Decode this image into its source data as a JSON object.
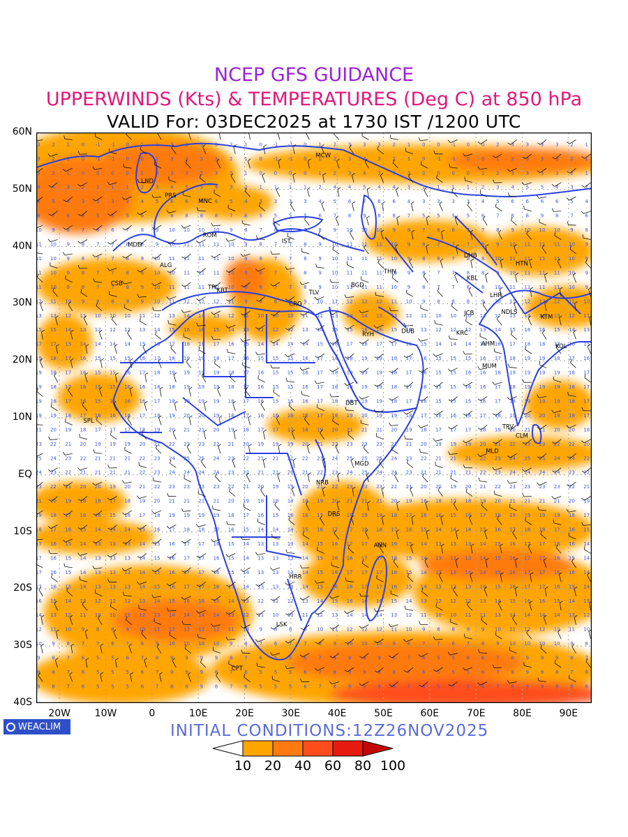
{
  "header": {
    "line1": "NCEP GFS GUIDANCE",
    "line2": "UPPERWINDS (Kts) & TEMPERATURES (Deg C) at 850 hPa",
    "line3": "VALID For: 03DEC2025 at 1730 IST /1200 UTC"
  },
  "map": {
    "lat_range": [
      -40,
      60
    ],
    "lon_range": [
      -25,
      95
    ],
    "lat_labels": [
      "60N",
      "50N",
      "40N",
      "30N",
      "20N",
      "10N",
      "EQ",
      "10S",
      "20S",
      "30S",
      "40S"
    ],
    "lon_labels": [
      "20W",
      "10W",
      "0",
      "10E",
      "20E",
      "30E",
      "40E",
      "50E",
      "60E",
      "70E",
      "80E",
      "90E"
    ],
    "stations": [
      {
        "code": "MCW",
        "lat": 56,
        "lon": 37
      },
      {
        "code": "LND",
        "lat": 51.5,
        "lon": -1
      },
      {
        "code": "PRS",
        "lat": 49,
        "lon": 4
      },
      {
        "code": "MNC",
        "lat": 48,
        "lon": 11.5
      },
      {
        "code": "ROM",
        "lat": 42,
        "lon": 12.5
      },
      {
        "code": "MDD",
        "lat": 40.4,
        "lon": -3.7
      },
      {
        "code": "IST",
        "lat": 41,
        "lon": 29
      },
      {
        "code": "ALG",
        "lat": 36.8,
        "lon": 3
      },
      {
        "code": "CSB",
        "lat": 33.6,
        "lon": -7.6
      },
      {
        "code": "TPL",
        "lat": 32.9,
        "lon": 13.2
      },
      {
        "code": "KRT",
        "lat": 32.4,
        "lon": 15.2
      },
      {
        "code": "CRO",
        "lat": 30,
        "lon": 31
      },
      {
        "code": "TLV",
        "lat": 32,
        "lon": 35
      },
      {
        "code": "BGD",
        "lat": 33.3,
        "lon": 44.4
      },
      {
        "code": "THN",
        "lat": 35.7,
        "lon": 51.4
      },
      {
        "code": "DHB",
        "lat": 38.5,
        "lon": 68.8
      },
      {
        "code": "KBL",
        "lat": 34.5,
        "lon": 69.2
      },
      {
        "code": "HTN",
        "lat": 37.1,
        "lon": 79.9
      },
      {
        "code": "LHR",
        "lat": 31.5,
        "lon": 74.3
      },
      {
        "code": "NDLS",
        "lat": 28.6,
        "lon": 77.2
      },
      {
        "code": "JCB",
        "lat": 28.4,
        "lon": 68.5
      },
      {
        "code": "RYH",
        "lat": 24.7,
        "lon": 46.7
      },
      {
        "code": "DUB",
        "lat": 25.2,
        "lon": 55.3
      },
      {
        "code": "KRC",
        "lat": 24.9,
        "lon": 67
      },
      {
        "code": "AHM",
        "lat": 23,
        "lon": 72.6
      },
      {
        "code": "KTM",
        "lat": 27.7,
        "lon": 85.3
      },
      {
        "code": "KOL",
        "lat": 22.6,
        "lon": 88.4
      },
      {
        "code": "MUM",
        "lat": 19.1,
        "lon": 72.9
      },
      {
        "code": "DBT",
        "lat": 12.6,
        "lon": 43.1
      },
      {
        "code": "SPL",
        "lat": 9.5,
        "lon": -13.7
      },
      {
        "code": "TRV",
        "lat": 8.5,
        "lon": 76.9
      },
      {
        "code": "CLM",
        "lat": 6.9,
        "lon": 79.9
      },
      {
        "code": "MLD",
        "lat": 4.2,
        "lon": 73.5
      },
      {
        "code": "MGD",
        "lat": 2,
        "lon": 45.3
      },
      {
        "code": "NRB",
        "lat": -1.3,
        "lon": 36.8
      },
      {
        "code": "DRS",
        "lat": -6.8,
        "lon": 39.3
      },
      {
        "code": "ANN",
        "lat": -12.3,
        "lon": 49.3
      },
      {
        "code": "HRR",
        "lat": -17.8,
        "lon": 31
      },
      {
        "code": "LSK",
        "lat": -26.2,
        "lon": 28
      },
      {
        "code": "CPT",
        "lat": -33.9,
        "lon": 18.4
      }
    ]
  },
  "footer": {
    "logo_text": "WEACLIM",
    "initial_conditions": "INITIAL CONDITIONS:12Z26NOV2025"
  },
  "colorbar": {
    "labels": [
      "10",
      "20",
      "40",
      "60",
      "80",
      "100"
    ],
    "colors": [
      "#ffffff",
      "#ffa500",
      "#ff7a10",
      "#ff4e1c",
      "#e81a10",
      "#c20806"
    ]
  },
  "colors": {
    "coast": "#2a3fe0",
    "value_text": "#3a55e0",
    "wind_barb": "#000000"
  }
}
